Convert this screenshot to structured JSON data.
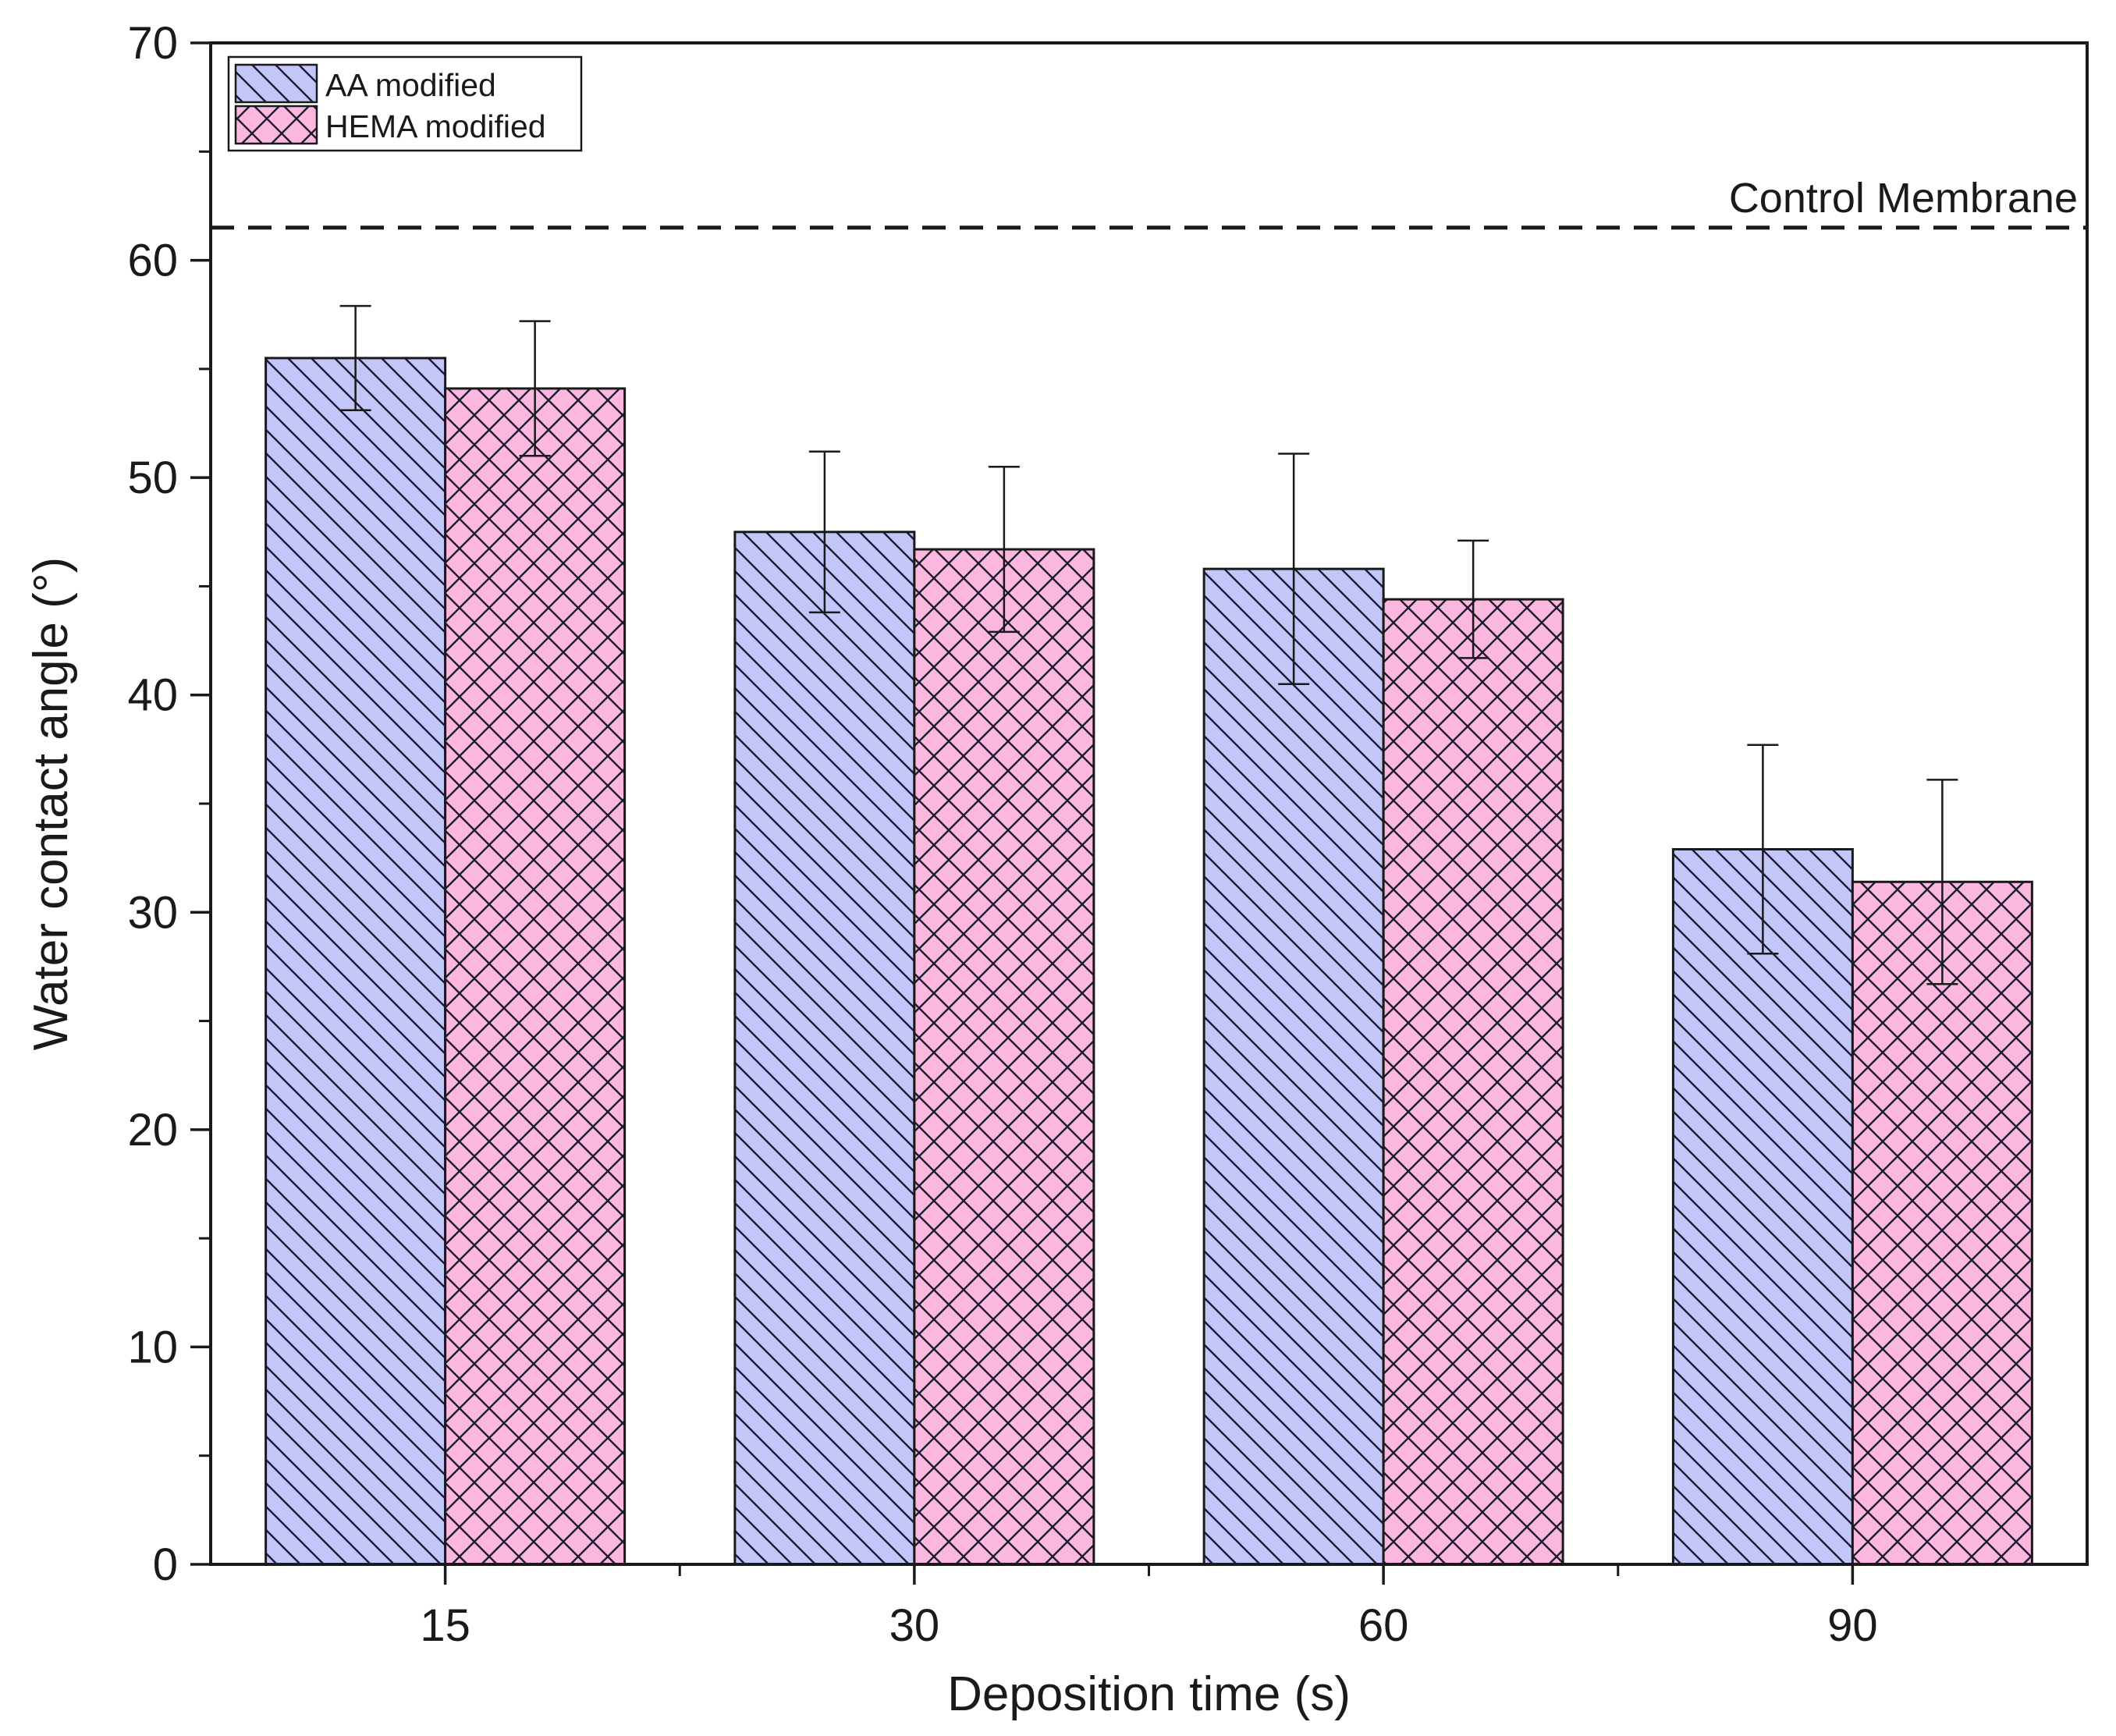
{
  "chart_data": {
    "type": "bar",
    "title": "",
    "xlabel": "Deposition time (s)",
    "ylabel": "Water contact angle (°)",
    "categories": [
      "15",
      "30",
      "60",
      "90"
    ],
    "ylim": [
      0,
      70
    ],
    "yticks": [
      0,
      10,
      20,
      30,
      40,
      50,
      60,
      70
    ],
    "y_minor_ticks": true,
    "grid": false,
    "legend_position": "top-left",
    "series": [
      {
        "name": "AA modified",
        "color": "#c3c6f8",
        "hatch": "diagonal",
        "values": [
          55.5,
          47.5,
          45.8,
          32.9
        ],
        "errors": [
          2.4,
          3.7,
          5.3,
          4.8
        ]
      },
      {
        "name": "HEMA modified",
        "color": "#fbb7de",
        "hatch": "cross",
        "values": [
          54.1,
          46.7,
          44.4,
          31.4
        ],
        "errors": [
          3.1,
          3.8,
          2.7,
          4.7
        ]
      }
    ],
    "reference_line": {
      "label": "Control Membrane",
      "value": 61.5,
      "style": "dashed"
    }
  }
}
